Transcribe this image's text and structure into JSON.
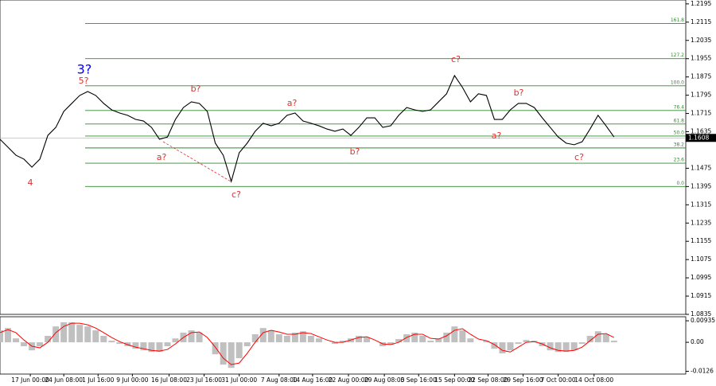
{
  "chart_data": [
    {
      "type": "line",
      "color": "#000000",
      "values": [
        1.1602,
        1.1567,
        1.1532,
        1.1515,
        1.148,
        1.1515,
        1.1619,
        1.1654,
        1.1724,
        1.1759,
        1.1794,
        1.1811,
        1.1794,
        1.1759,
        1.1731,
        1.1717,
        1.1707,
        1.1689,
        1.1682,
        1.1654,
        1.1602,
        1.1612,
        1.1689,
        1.1741,
        1.1766,
        1.1759,
        1.1724,
        1.1585,
        1.1532,
        1.1417,
        1.1543,
        1.1585,
        1.1637,
        1.1672,
        1.1661,
        1.1672,
        1.1707,
        1.1717,
        1.1682,
        1.1672,
        1.1661,
        1.1647,
        1.1637,
        1.1647,
        1.1619,
        1.1654,
        1.1696,
        1.1696,
        1.1654,
        1.1661,
        1.1707,
        1.1741,
        1.1731,
        1.1724,
        1.1731,
        1.1766,
        1.1801,
        1.1881,
        1.1829,
        1.1766,
        1.1801,
        1.1794,
        1.1689,
        1.1689,
        1.1731,
        1.1759,
        1.1759,
        1.1741,
        1.1696,
        1.1654,
        1.1612,
        1.1585,
        1.1578,
        1.1591,
        1.1647,
        1.1707,
        1.1661,
        1.1612
      ],
      "xlim": [
        0,
        86
      ],
      "ylim": [
        1.0835,
        1.2212
      ],
      "yticks": [
        1.2195,
        1.2115,
        1.2035,
        1.1955,
        1.1875,
        1.1795,
        1.1715,
        1.1635,
        1.1475,
        1.1395,
        1.1315,
        1.1235,
        1.1155,
        1.1075,
        1.0995,
        1.0915,
        1.0835
      ],
      "last_price": 1.1608,
      "fib_color": "#2e8b2e",
      "fib_levels": [
        {
          "label": "161.8",
          "price": 1.2109
        },
        {
          "label": "127.2",
          "price": 1.1955
        },
        {
          "label": "100.0",
          "price": 1.1836
        },
        {
          "label": "76.4",
          "price": 1.1728
        },
        {
          "label": "61.8",
          "price": 1.1669
        },
        {
          "label": "50.0",
          "price": 1.1616
        },
        {
          "label": "38.2",
          "price": 1.1564
        },
        {
          "label": "23.6",
          "price": 1.1497
        },
        {
          "label": "0.0",
          "price": 1.1395
        }
      ],
      "annotations": [
        {
          "text": "3?",
          "color": "#0000ff"
        },
        {
          "text": "5?",
          "color": "#e03030"
        },
        {
          "text": "4",
          "color": "#e03030"
        },
        {
          "text": "b?",
          "color": "#e03030"
        },
        {
          "text": "a?",
          "color": "#e03030"
        },
        {
          "text": "c?",
          "color": "#e03030"
        },
        {
          "text": "a?",
          "color": "#e03030"
        },
        {
          "text": "b?",
          "color": "#e03030"
        },
        {
          "text": "c?",
          "color": "#e03030"
        },
        {
          "text": "a?",
          "color": "#e03030"
        },
        {
          "text": "b?",
          "color": "#e03030"
        },
        {
          "text": "c?",
          "color": "#e03030"
        }
      ]
    },
    {
      "type": "bar",
      "xlim": [
        0,
        86
      ],
      "ylim": [
        -0.0138,
        0.0111
      ],
      "yticks": [
        0.00935,
        {
          "value": 0,
          "label": "0.00"
        },
        -0.0126
      ],
      "xticks": [
        {
          "value": 3.8,
          "label": "17 Jun 00:00"
        },
        {
          "value": 8.0,
          "label": "24 Jun 08:00"
        },
        {
          "value": 12.3,
          "label": "1 Jul 16:00"
        },
        {
          "value": 16.6,
          "label": "9 Jul 00:00"
        },
        {
          "value": 21.2,
          "label": "16 Jul 08:00"
        },
        {
          "value": 25.6,
          "label": "23 Jul 16:00"
        },
        {
          "value": 30.0,
          "label": "31 Jul 00:00"
        },
        {
          "value": 35.0,
          "label": "7 Aug 08:00"
        },
        {
          "value": 39.2,
          "label": "14 Aug 16:00"
        },
        {
          "value": 43.7,
          "label": "22 Aug 00:00"
        },
        {
          "value": 48.2,
          "label": "29 Aug 08:00"
        },
        {
          "value": 52.5,
          "label": "5 Sep 16:00"
        },
        {
          "value": 57.0,
          "label": "15 Sep 00:00"
        },
        {
          "value": 61.2,
          "label": "22 Sep 08:00"
        },
        {
          "value": 65.6,
          "label": "29 Sep 16:00"
        },
        {
          "value": 70.0,
          "label": "7 Oct 00:00"
        },
        {
          "value": 74.5,
          "label": "14 Oct 08:00"
        }
      ],
      "series": [
        {
          "type": "bar",
          "color": "#c0c0c0",
          "values": [
            0.0052,
            0.0062,
            0.0017,
            -0.0017,
            -0.0035,
            -0.0017,
            0.0028,
            0.0069,
            0.0087,
            0.0087,
            0.0076,
            0.0069,
            0.0052,
            0.0028,
            0.0007,
            -0.0007,
            -0.0017,
            -0.0028,
            -0.0035,
            -0.0042,
            -0.0042,
            -0.0017,
            0.0017,
            0.0042,
            0.0052,
            0.0042,
            0,
            -0.0052,
            -0.0097,
            -0.0111,
            -0.0069,
            -0.0017,
            0.0035,
            0.0062,
            0.0052,
            0.0035,
            0.0028,
            0.0042,
            0.0048,
            0.0028,
            0.0017,
            0,
            -0.0007,
            0.0007,
            0.0017,
            0.0028,
            0.0021,
            0,
            -0.0017,
            -0.001,
            0.0014,
            0.0035,
            0.0042,
            0.0028,
            0.0007,
            0.0017,
            0.0042,
            0.0069,
            0.0052,
            0.0017,
            0,
            0.0007,
            -0.0028,
            -0.0048,
            -0.0035,
            -0.0007,
            0.001,
            0.0007,
            -0.0017,
            -0.0035,
            -0.0042,
            -0.0042,
            -0.0035,
            -0.0007,
            0.0028,
            0.0048,
            0.0035,
            0.0007
          ]
        },
        {
          "type": "line",
          "color": "#ff0000",
          "values": [
            0.0042,
            0.0055,
            0.0042,
            0.001,
            -0.0017,
            -0.0024,
            0,
            0.0042,
            0.0069,
            0.0083,
            0.0083,
            0.0076,
            0.0062,
            0.0042,
            0.0021,
            0.0003,
            -0.001,
            -0.0021,
            -0.0028,
            -0.0035,
            -0.0038,
            -0.0031,
            -0.0007,
            0.0021,
            0.0042,
            0.0045,
            0.0021,
            -0.0021,
            -0.0069,
            -0.0097,
            -0.009,
            -0.0048,
            0,
            0.0042,
            0.0052,
            0.0045,
            0.0035,
            0.0035,
            0.0042,
            0.0038,
            0.0024,
            0.001,
            0,
            0,
            0.001,
            0.0021,
            0.0024,
            0.001,
            -0.0007,
            -0.001,
            0,
            0.0021,
            0.0035,
            0.0035,
            0.0017,
            0.0014,
            0.0028,
            0.0052,
            0.0059,
            0.0035,
            0.0014,
            0.0007,
            -0.001,
            -0.0035,
            -0.0042,
            -0.0021,
            0,
            0.0003,
            -0.0007,
            -0.0024,
            -0.0035,
            -0.0038,
            -0.0035,
            -0.0021,
            0.0007,
            0.0035,
            0.0038,
            0.0021
          ]
        }
      ]
    }
  ]
}
